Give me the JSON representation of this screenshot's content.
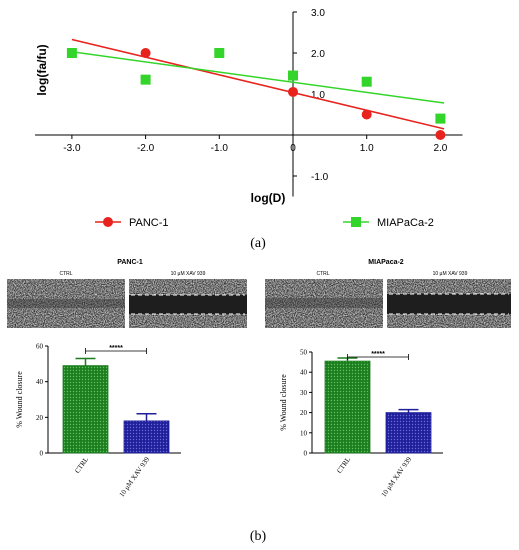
{
  "panel_a": {
    "label": "(a)",
    "chart_data": {
      "type": "scatter",
      "xlabel": "log(D)",
      "ylabel": "log(fa/fu)",
      "xlim": [
        -3.5,
        2.3
      ],
      "ylim": [
        -1.5,
        3.0
      ],
      "x_ticks": [
        "-3.0",
        "-2.0",
        "-1.0",
        "0",
        "1.0",
        "2.0"
      ],
      "y_ticks": [
        "3.0",
        "2.0",
        "1.0",
        "-1.0"
      ],
      "legend_position": "bottom",
      "series": [
        {
          "name": "PANC-1",
          "marker": "circle",
          "color": "#e8221c",
          "x": [
            -2.0,
            0.0,
            1.0,
            2.0
          ],
          "y": [
            2.0,
            1.05,
            0.5,
            0.0
          ],
          "fit": {
            "x1": -3.0,
            "y1": 2.33,
            "x2": 2.05,
            "y2": 0.15
          }
        },
        {
          "name": "MIAPaCa-2",
          "marker": "square",
          "color": "#34d52a",
          "x": [
            -3.0,
            -2.0,
            -1.0,
            0.0,
            1.0,
            2.0
          ],
          "y": [
            2.0,
            1.35,
            2.0,
            1.45,
            1.3,
            0.4
          ],
          "fit": {
            "x1": -3.0,
            "y1": 2.03,
            "x2": 2.05,
            "y2": 0.78
          }
        }
      ]
    }
  },
  "panel_b": {
    "label": "(b)",
    "images": {
      "left_title": "PANC-1",
      "right_title": "MIAPaca-2",
      "ctrl_label": "CTRL",
      "treat_label": "10 µM XAV 939"
    },
    "chart_data": [
      {
        "type": "bar",
        "ylabel": "% Wound closure",
        "categories": [
          "CTRL",
          "10 μM XAV 939"
        ],
        "values": [
          49,
          18
        ],
        "errors": [
          4,
          4
        ],
        "ylim": [
          0,
          60
        ],
        "y_ticks": [
          "0",
          "20",
          "40",
          "60"
        ],
        "significance": "*****",
        "colors": [
          "#1b7d1d",
          "#1f1f9a"
        ]
      },
      {
        "type": "bar",
        "ylabel": "% Wound closure",
        "categories": [
          "CTRL",
          "10 μM XAV 939"
        ],
        "values": [
          45.5,
          20
        ],
        "errors": [
          1.5,
          1.5
        ],
        "ylim": [
          0,
          50
        ],
        "y_ticks": [
          "0",
          "10",
          "20",
          "30",
          "40",
          "50"
        ],
        "significance": "*****",
        "colors": [
          "#1b7d1d",
          "#1f1f9a"
        ]
      }
    ]
  }
}
